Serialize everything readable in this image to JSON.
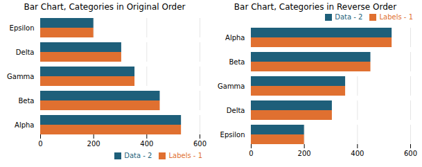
{
  "chart_data": [
    {
      "type": "bar",
      "orientation": "horizontal",
      "title": "Bar Chart, Categories in Original Order",
      "categories": [
        "Alpha",
        "Beta",
        "Gamma",
        "Delta",
        "Epsilon"
      ],
      "series": [
        {
          "name": "Data - 2",
          "color": "#1E5F7A",
          "values": [
            530,
            450,
            355,
            305,
            200
          ]
        },
        {
          "name": "Labels - 1",
          "color": "#E07030",
          "values": [
            530,
            450,
            355,
            305,
            200
          ]
        }
      ],
      "xlim": [
        0,
        600
      ],
      "xticks": [
        0,
        200,
        400,
        600
      ],
      "grid": true,
      "legend": "lower right"
    },
    {
      "type": "bar",
      "orientation": "horizontal",
      "title": "Bar Chart, Categories in Reverse Order",
      "categories": [
        "Epsilon",
        "Delta",
        "Gamma",
        "Beta",
        "Alpha"
      ],
      "series": [
        {
          "name": "Data - 2",
          "color": "#1E5F7A",
          "values": [
            200,
            305,
            355,
            450,
            530
          ]
        },
        {
          "name": "Labels - 1",
          "color": "#E07030",
          "values": [
            200,
            305,
            355,
            450,
            530
          ]
        }
      ],
      "xlim": [
        0,
        600
      ],
      "xticks": [
        0,
        200,
        400,
        600
      ],
      "grid": true,
      "legend": "upper right"
    }
  ]
}
